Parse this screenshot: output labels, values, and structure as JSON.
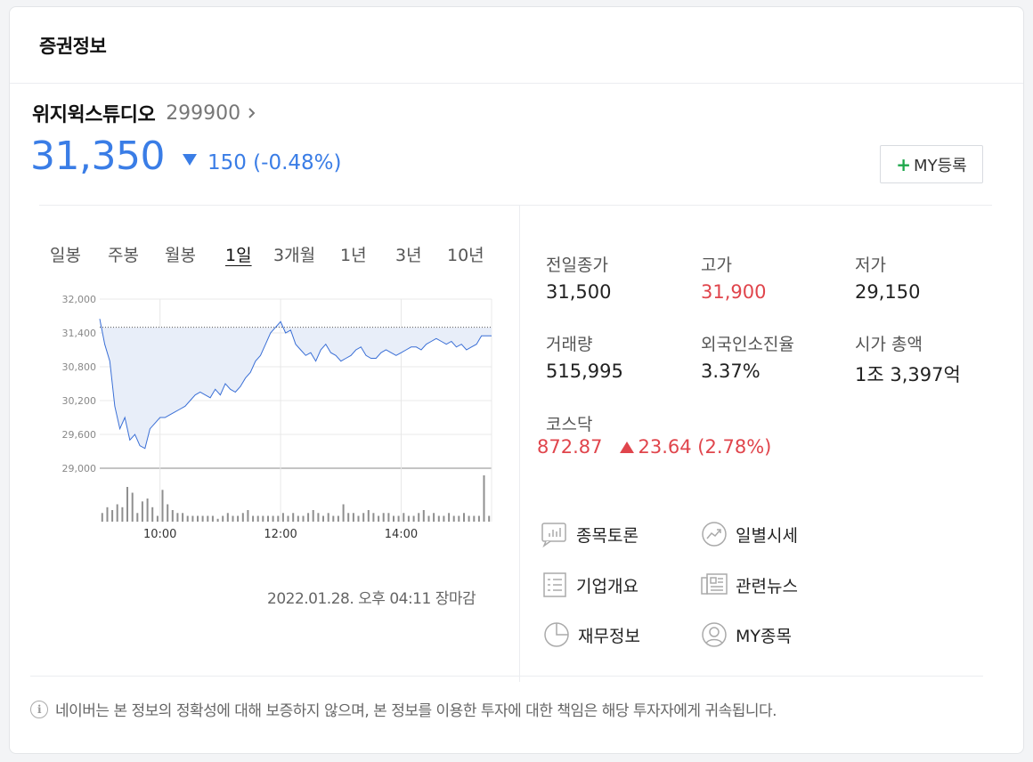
{
  "card_title": "증권정보",
  "stock": {
    "name": "위지윅스튜디오",
    "code": "299900",
    "price": "31,350",
    "change": "150 (-0.48%)",
    "my_button": "MY등록"
  },
  "tabs": [
    "일봉",
    "주봉",
    "월봉",
    "1일",
    "3개월",
    "1년",
    "3년",
    "10년"
  ],
  "active_tab": "1일",
  "chart_data": {
    "type": "area",
    "y_ticks": [
      "32,000",
      "31,400",
      "30,800",
      "30,200",
      "29,600",
      "29,000"
    ],
    "x_ticks": [
      "10:00",
      "12:00",
      "14:00"
    ],
    "ylim": [
      29000,
      32000
    ],
    "prev_close": 31500,
    "time_range": [
      "09:00",
      "15:30"
    ],
    "series": [
      {
        "x": [
          "09:00",
          "09:05",
          "09:10",
          "09:15",
          "09:20",
          "09:25",
          "09:30",
          "09:35",
          "09:40",
          "09:45",
          "09:50",
          "09:55",
          "10:00",
          "10:05",
          "10:10",
          "10:15",
          "10:20",
          "10:25",
          "10:30",
          "10:35",
          "10:40",
          "10:45",
          "10:50",
          "10:55",
          "11:00",
          "11:05",
          "11:10",
          "11:15",
          "11:20",
          "11:25",
          "11:30",
          "11:35",
          "11:40",
          "11:45",
          "11:50",
          "11:55",
          "12:00",
          "12:05",
          "12:10",
          "12:15",
          "12:20",
          "12:25",
          "12:30",
          "12:35",
          "12:40",
          "12:45",
          "12:50",
          "12:55",
          "13:00",
          "13:05",
          "13:10",
          "13:15",
          "13:20",
          "13:25",
          "13:30",
          "13:35",
          "13:40",
          "13:45",
          "13:50",
          "13:55",
          "14:00",
          "14:05",
          "14:10",
          "14:15",
          "14:20",
          "14:25",
          "14:30",
          "14:35",
          "14:40",
          "14:45",
          "14:50",
          "14:55",
          "15:00",
          "15:05",
          "15:10",
          "15:15",
          "15:20",
          "15:30"
        ],
        "values": [
          31650,
          31200,
          30900,
          30100,
          29700,
          29900,
          29500,
          29600,
          29400,
          29350,
          29700,
          29800,
          29900,
          29900,
          29950,
          30000,
          30050,
          30100,
          30200,
          30300,
          30350,
          30300,
          30250,
          30400,
          30300,
          30500,
          30400,
          30350,
          30450,
          30600,
          30700,
          30900,
          31000,
          31200,
          31400,
          31500,
          31600,
          31400,
          31450,
          31200,
          31100,
          31000,
          31050,
          30900,
          31100,
          31200,
          31050,
          31000,
          30900,
          30950,
          31000,
          31100,
          31150,
          31000,
          30950,
          30950,
          31050,
          31100,
          31050,
          31000,
          31050,
          31100,
          31150,
          31150,
          31100,
          31200,
          31250,
          31300,
          31250,
          31200,
          31250,
          31150,
          31200,
          31100,
          31150,
          31200,
          31350,
          31350
        ]
      }
    ],
    "volume": [
      3,
      5,
      4,
      6,
      5,
      12,
      10,
      3,
      7,
      8,
      5,
      2,
      11,
      6,
      4,
      3,
      3,
      2,
      2,
      2,
      2,
      2,
      2,
      1,
      2,
      3,
      2,
      2,
      3,
      4,
      2,
      2,
      2,
      2,
      2,
      2,
      3,
      2,
      3,
      2,
      2,
      3,
      4,
      3,
      2,
      3,
      2,
      2,
      6,
      3,
      3,
      2,
      3,
      4,
      3,
      2,
      3,
      3,
      2,
      2,
      3,
      2,
      2,
      3,
      4,
      2,
      3,
      2,
      2,
      3,
      2,
      2,
      3,
      2,
      2,
      2,
      16,
      2
    ]
  },
  "timestamp": "2022.01.28. 오후 04:11 장마감",
  "stats": {
    "prev_close_label": "전일종가",
    "prev_close": "31,500",
    "high_label": "고가",
    "high": "31,900",
    "low_label": "저가",
    "low": "29,150",
    "volume_label": "거래량",
    "volume": "515,995",
    "foreign_label": "외국인소진율",
    "foreign": "3.37%",
    "mcap_label": "시가 총액",
    "mcap": "1조 3,397억"
  },
  "index": {
    "label": "코스닥",
    "value": "872.87",
    "change": "23.64 (2.78%)"
  },
  "links": {
    "discussion": "종목토론",
    "daily_price": "일별시세",
    "company": "기업개요",
    "news": "관련뉴스",
    "finance": "재무정보",
    "my_stocks": "MY종목"
  },
  "footer_note": "네이버는 본 정보의 정확성에 대해 보증하지 않으며, 본 정보를 이용한 투자에 대한 책임은 해당 투자자에게 귀속됩니다.",
  "colors": {
    "down": "#3a7de6",
    "up": "#e0454c",
    "fill": "#e8eef9"
  }
}
